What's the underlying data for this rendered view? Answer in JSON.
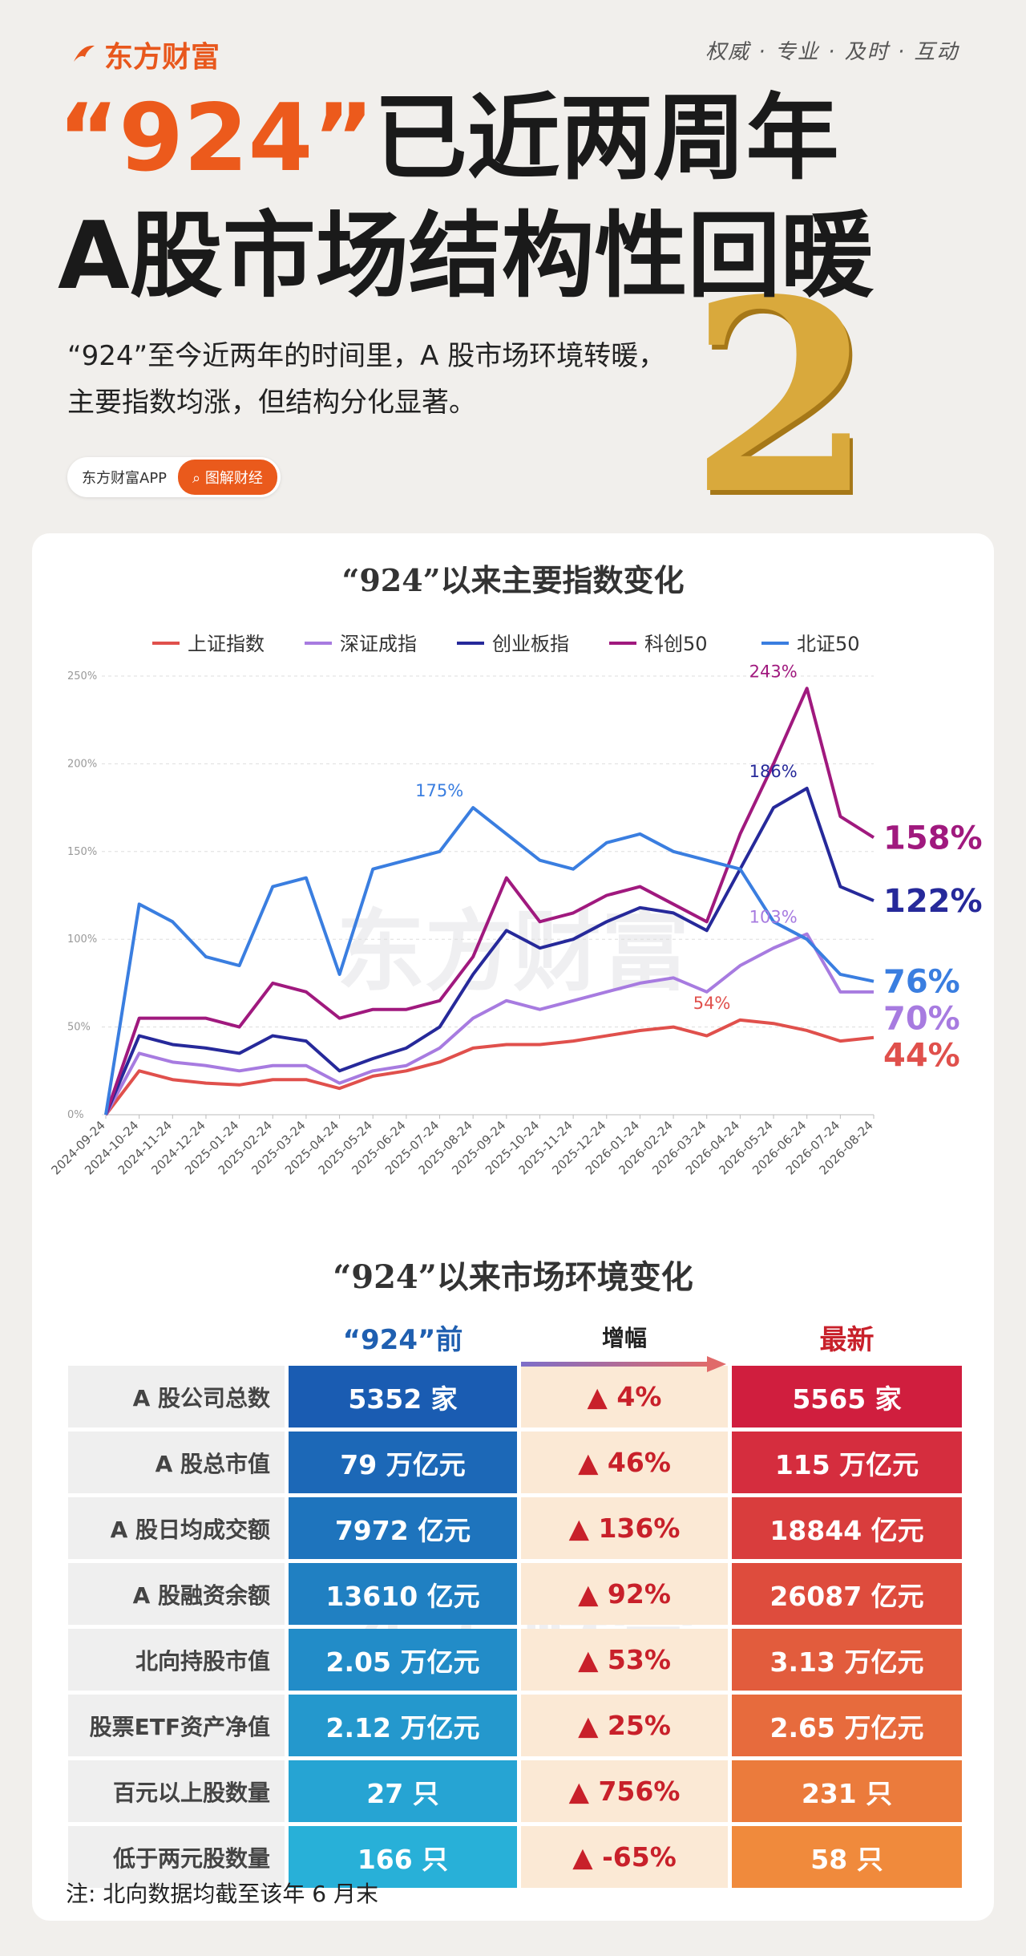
{
  "header": {
    "brand": "东方财富",
    "slogan": "权威 · 专业 · 及时 · 互动",
    "title_highlight": "“924”",
    "title_rest": "已近两周年",
    "title_line2": "A股市场结构性回暖",
    "subtitle": "“924”至今近两年的时间里，A 股市场环境转暖，主要指数均涨，但结构分化显著。",
    "app_label": "东方财富APP",
    "button": "图解财经",
    "big_number": "2"
  },
  "watermark": "东方财富",
  "chart_data": {
    "type": "line",
    "title": "“924”以来主要指数变化",
    "x": [
      "2024-09-24",
      "2024-10-24",
      "2024-11-24",
      "2024-12-24",
      "2025-01-24",
      "2025-02-24",
      "2025-03-24",
      "2025-04-24",
      "2025-05-24",
      "2025-06-24",
      "2025-07-24",
      "2025-08-24",
      "2025-09-24",
      "2025-10-24",
      "2025-11-24",
      "2025-12-24",
      "2026-01-24",
      "2026-02-24",
      "2026-03-24",
      "2026-04-24",
      "2026-05-24",
      "2026-06-24",
      "2026-07-24",
      "2026-08-24"
    ],
    "series": [
      {
        "name": "上证指数",
        "color": "#e0504c",
        "values": [
          0,
          25,
          20,
          18,
          17,
          20,
          20,
          15,
          22,
          25,
          30,
          38,
          40,
          40,
          42,
          45,
          48,
          50,
          45,
          54,
          52,
          48,
          42,
          44
        ]
      },
      {
        "name": "深证成指",
        "color": "#a77be0",
        "values": [
          0,
          35,
          30,
          28,
          25,
          28,
          28,
          18,
          25,
          28,
          38,
          55,
          65,
          60,
          65,
          70,
          75,
          78,
          70,
          85,
          95,
          103,
          70,
          70
        ]
      },
      {
        "name": "创业板指",
        "color": "#26299a",
        "values": [
          0,
          45,
          40,
          38,
          35,
          45,
          42,
          25,
          32,
          38,
          50,
          80,
          105,
          95,
          100,
          110,
          118,
          115,
          105,
          140,
          175,
          186,
          130,
          122
        ]
      },
      {
        "name": "科创50",
        "color": "#a0197e",
        "values": [
          0,
          55,
          55,
          55,
          50,
          75,
          70,
          55,
          60,
          60,
          65,
          90,
          135,
          110,
          115,
          125,
          130,
          120,
          110,
          160,
          200,
          243,
          170,
          158
        ]
      },
      {
        "name": "北证50",
        "color": "#3a7ee0",
        "values": [
          0,
          120,
          110,
          90,
          85,
          130,
          135,
          80,
          140,
          145,
          150,
          175,
          160,
          145,
          140,
          155,
          160,
          150,
          145,
          140,
          110,
          100,
          80,
          76
        ]
      }
    ],
    "ylim": [
      0,
      250
    ],
    "yticks": [
      {
        "value": 0,
        "label": "0%"
      },
      {
        "value": 50,
        "label": "50%"
      },
      {
        "value": 100,
        "label": "100%"
      },
      {
        "value": 150,
        "label": "150%"
      },
      {
        "value": 200,
        "label": "200%"
      },
      {
        "value": 250,
        "label": "250%"
      }
    ],
    "grid": true,
    "annotations": [
      {
        "x": "2025-08-24",
        "value": 175,
        "label": "175%",
        "color": "#3a7ee0"
      },
      {
        "x": "2026-06-24",
        "value": 186,
        "label": "186%",
        "color": "#26299a"
      },
      {
        "x": "2026-06-24",
        "value": 243,
        "label": "243%",
        "color": "#a0197e"
      },
      {
        "x": "2026-06-24",
        "value": 103,
        "label": "103%",
        "color": "#a77be0"
      },
      {
        "x": "2026-04-24",
        "value": 54,
        "label": "54%",
        "color": "#e0504c"
      }
    ],
    "end_labels": [
      {
        "value": 158,
        "label": "158%",
        "color": "#a0197e"
      },
      {
        "value": 122,
        "label": "122%",
        "color": "#26299a"
      },
      {
        "value": 76,
        "label": "76%",
        "color": "#3a7ee0"
      },
      {
        "value": 70,
        "label": "70%",
        "color": "#a77be0"
      },
      {
        "value": 44,
        "label": "44%",
        "color": "#e0504c"
      }
    ]
  },
  "table": {
    "title": "“924”以来市场环境变化",
    "headers": [
      "“924”前",
      "增幅",
      "最新"
    ],
    "rows": [
      [
        "A 股公司总数",
        "5352 家",
        "▲ 4%",
        "5565 家"
      ],
      [
        "A 股总市值",
        "79 万亿元",
        "▲ 46%",
        "115 万亿元"
      ],
      [
        "A 股日均成交额",
        "7972 亿元",
        "▲ 136%",
        "18844 亿元"
      ],
      [
        "A 股融资余额",
        "13610 亿元",
        "▲ 92%",
        "26087 亿元"
      ],
      [
        "北向持股市值",
        "2.05 万亿元",
        "▲ 53%",
        "3.13 万亿元"
      ],
      [
        "股票ETF资产净值",
        "2.12 万亿元",
        "▲ 25%",
        "2.65 万亿元"
      ],
      [
        "百元以上股数量",
        "27 只",
        "▲ 756%",
        "231 只"
      ],
      [
        "低于两元股数量",
        "166 只",
        "▲ -65%",
        "58 只"
      ]
    ]
  },
  "note": "注: 北向数据均截至该年 6 月末"
}
